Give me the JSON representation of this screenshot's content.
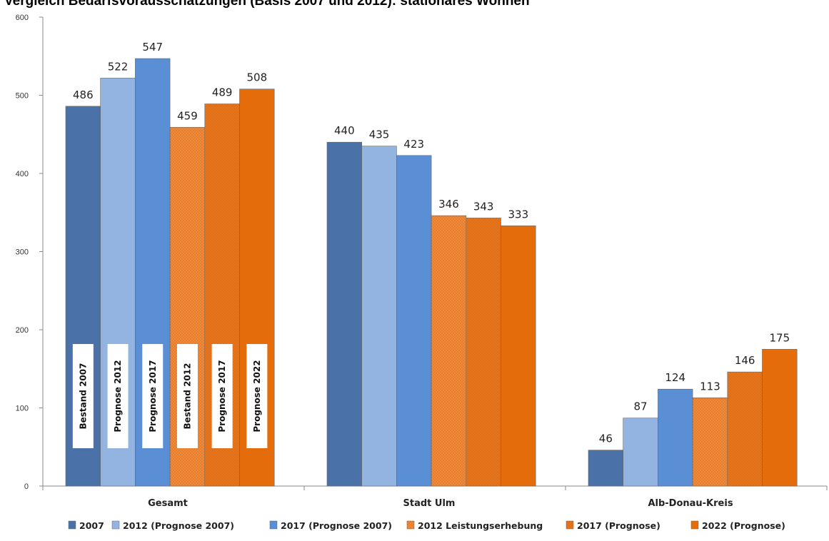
{
  "title": "Vergleich Bedarfsvorausschätzungen (Basis 2007 und 2012): stationäres Wohnen",
  "colors": {
    "2007": "#4a72a8",
    "2012_prognose_2007": "#93b3e0",
    "2017_prognose_2007": "#5a8ed5",
    "2012_leistungserhebung": "#f0893a",
    "2017_prognose": "#e8751c",
    "2022_prognose": "#e46c0a"
  },
  "chart_data": {
    "type": "bar",
    "title": "Vergleich Bedarfsvorausschätzungen (Basis 2007 und 2012): stationäres Wohnen",
    "categories": [
      "Gesamt",
      "Stadt Ulm",
      "Alb-Donau-Kreis"
    ],
    "ylim": [
      0,
      600
    ],
    "yticks": [
      0,
      100,
      200,
      300,
      400,
      500,
      600
    ],
    "grid": false,
    "legend_position": "bottom",
    "series": [
      {
        "name": "2007",
        "values": [
          486,
          440,
          46
        ],
        "color": "#4a72a8",
        "hatched": false
      },
      {
        "name": "2012 (Prognose 2007)",
        "values": [
          522,
          435,
          87
        ],
        "color": "#93b3e0",
        "hatched": false
      },
      {
        "name": "2017 (Prognose 2007)",
        "values": [
          547,
          423,
          124
        ],
        "color": "#5a8ed5",
        "hatched": false
      },
      {
        "name": "2012 Leistungserhebung",
        "values": [
          459,
          346,
          113
        ],
        "color": "#f0893a",
        "hatched": true
      },
      {
        "name": "2017 (Prognose)",
        "values": [
          489,
          343,
          146
        ],
        "color": "#e8751c",
        "hatched": true
      },
      {
        "name": "2022 (Prognose)",
        "values": [
          508,
          333,
          175
        ],
        "color": "#e46c0a",
        "hatched": false
      }
    ],
    "annotations": [
      "Bestand 2007",
      "Prognose  2012",
      "Prognose  2017",
      "Bestand 2012",
      "Prognose  2017",
      "Prognose  2022"
    ]
  }
}
